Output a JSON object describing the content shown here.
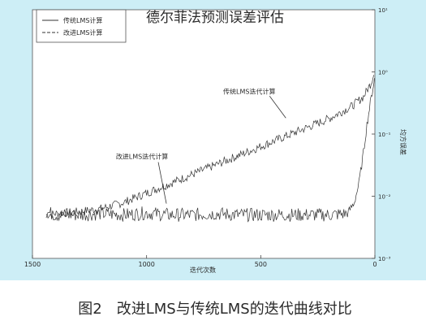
{
  "page_title": "德尔菲法预测误差评估",
  "caption": "图2　改进LMS与传统LMS的迭代曲线对比",
  "legend_items": [
    "传统LMS计算",
    "改进LMS计算"
  ],
  "colors": {
    "cyan_bg": "#cdeef6",
    "plot_bg": "#ffffff",
    "series_color": "#333333",
    "frame": "#555555"
  },
  "chart_data": {
    "type": "line",
    "title": "",
    "xlabel": "迭代次数",
    "ylabel": "均方误差",
    "x_reversed": true,
    "xlim": [
      1500,
      0
    ],
    "ylim_log10": [
      -3,
      1
    ],
    "yscale": "log",
    "x_ticks": [
      1500,
      1000,
      500,
      0
    ],
    "y_ticks": [
      -3,
      -2,
      -1,
      0,
      1
    ],
    "y_tick_labels": [
      "10⁻³",
      "10⁻²",
      "10⁻¹",
      "10⁰",
      "10¹"
    ],
    "legend_position": "top-left",
    "grid": false,
    "annotations": [
      {
        "text": "传统LMS迭代计算",
        "x": 550,
        "log10_y": -0.35
      },
      {
        "text": "改进LMS迭代计算",
        "x": 1020,
        "log10_y": -1.4
      }
    ],
    "series": [
      {
        "name": "传统LMS计算",
        "x": [
          1440,
          1400,
          1300,
          1200,
          1100,
          1000,
          900,
          800,
          700,
          600,
          500,
          400,
          300,
          200,
          100,
          50,
          20,
          5
        ],
        "log10_y": [
          -2.3,
          -2.28,
          -2.25,
          -2.2,
          -2.1,
          -1.95,
          -1.8,
          -1.65,
          -1.5,
          -1.35,
          -1.2,
          -1.05,
          -0.9,
          -0.75,
          -0.55,
          -0.4,
          -0.2,
          -0.05
        ]
      },
      {
        "name": "改进LMS计算",
        "x": [
          1440,
          1400,
          1300,
          1200,
          1100,
          1000,
          900,
          800,
          700,
          600,
          500,
          400,
          300,
          200,
          120,
          90,
          70,
          50,
          35,
          20,
          8,
          2
        ],
        "log10_y": [
          -2.25,
          -2.3,
          -2.3,
          -2.28,
          -2.3,
          -2.27,
          -2.3,
          -2.3,
          -2.28,
          -2.3,
          -2.3,
          -2.3,
          -2.3,
          -2.3,
          -2.28,
          -2.1,
          -1.8,
          -1.3,
          -0.85,
          -0.5,
          -0.25,
          -0.1
        ]
      }
    ]
  }
}
